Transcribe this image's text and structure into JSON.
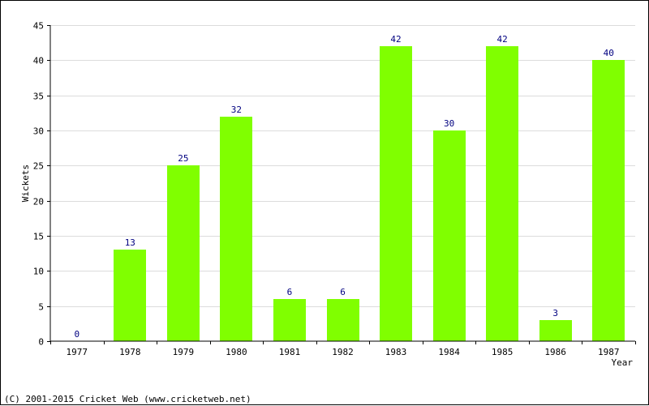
{
  "chart_data": {
    "type": "bar",
    "title": "",
    "xlabel": "Year",
    "ylabel": "Wickets",
    "categories": [
      "1977",
      "1978",
      "1979",
      "1980",
      "1981",
      "1982",
      "1983",
      "1984",
      "1985",
      "1986",
      "1987"
    ],
    "values": [
      0,
      13,
      25,
      32,
      6,
      6,
      42,
      30,
      42,
      3,
      40
    ],
    "ylim": [
      0,
      45
    ],
    "yticks": [
      0,
      5,
      10,
      15,
      20,
      25,
      30,
      35,
      40,
      45
    ],
    "grid": true,
    "bar_color": "#80ff00",
    "label_color": "#000080"
  },
  "footer": {
    "copyright": "(C) 2001-2015 Cricket Web (www.cricketweb.net)"
  }
}
